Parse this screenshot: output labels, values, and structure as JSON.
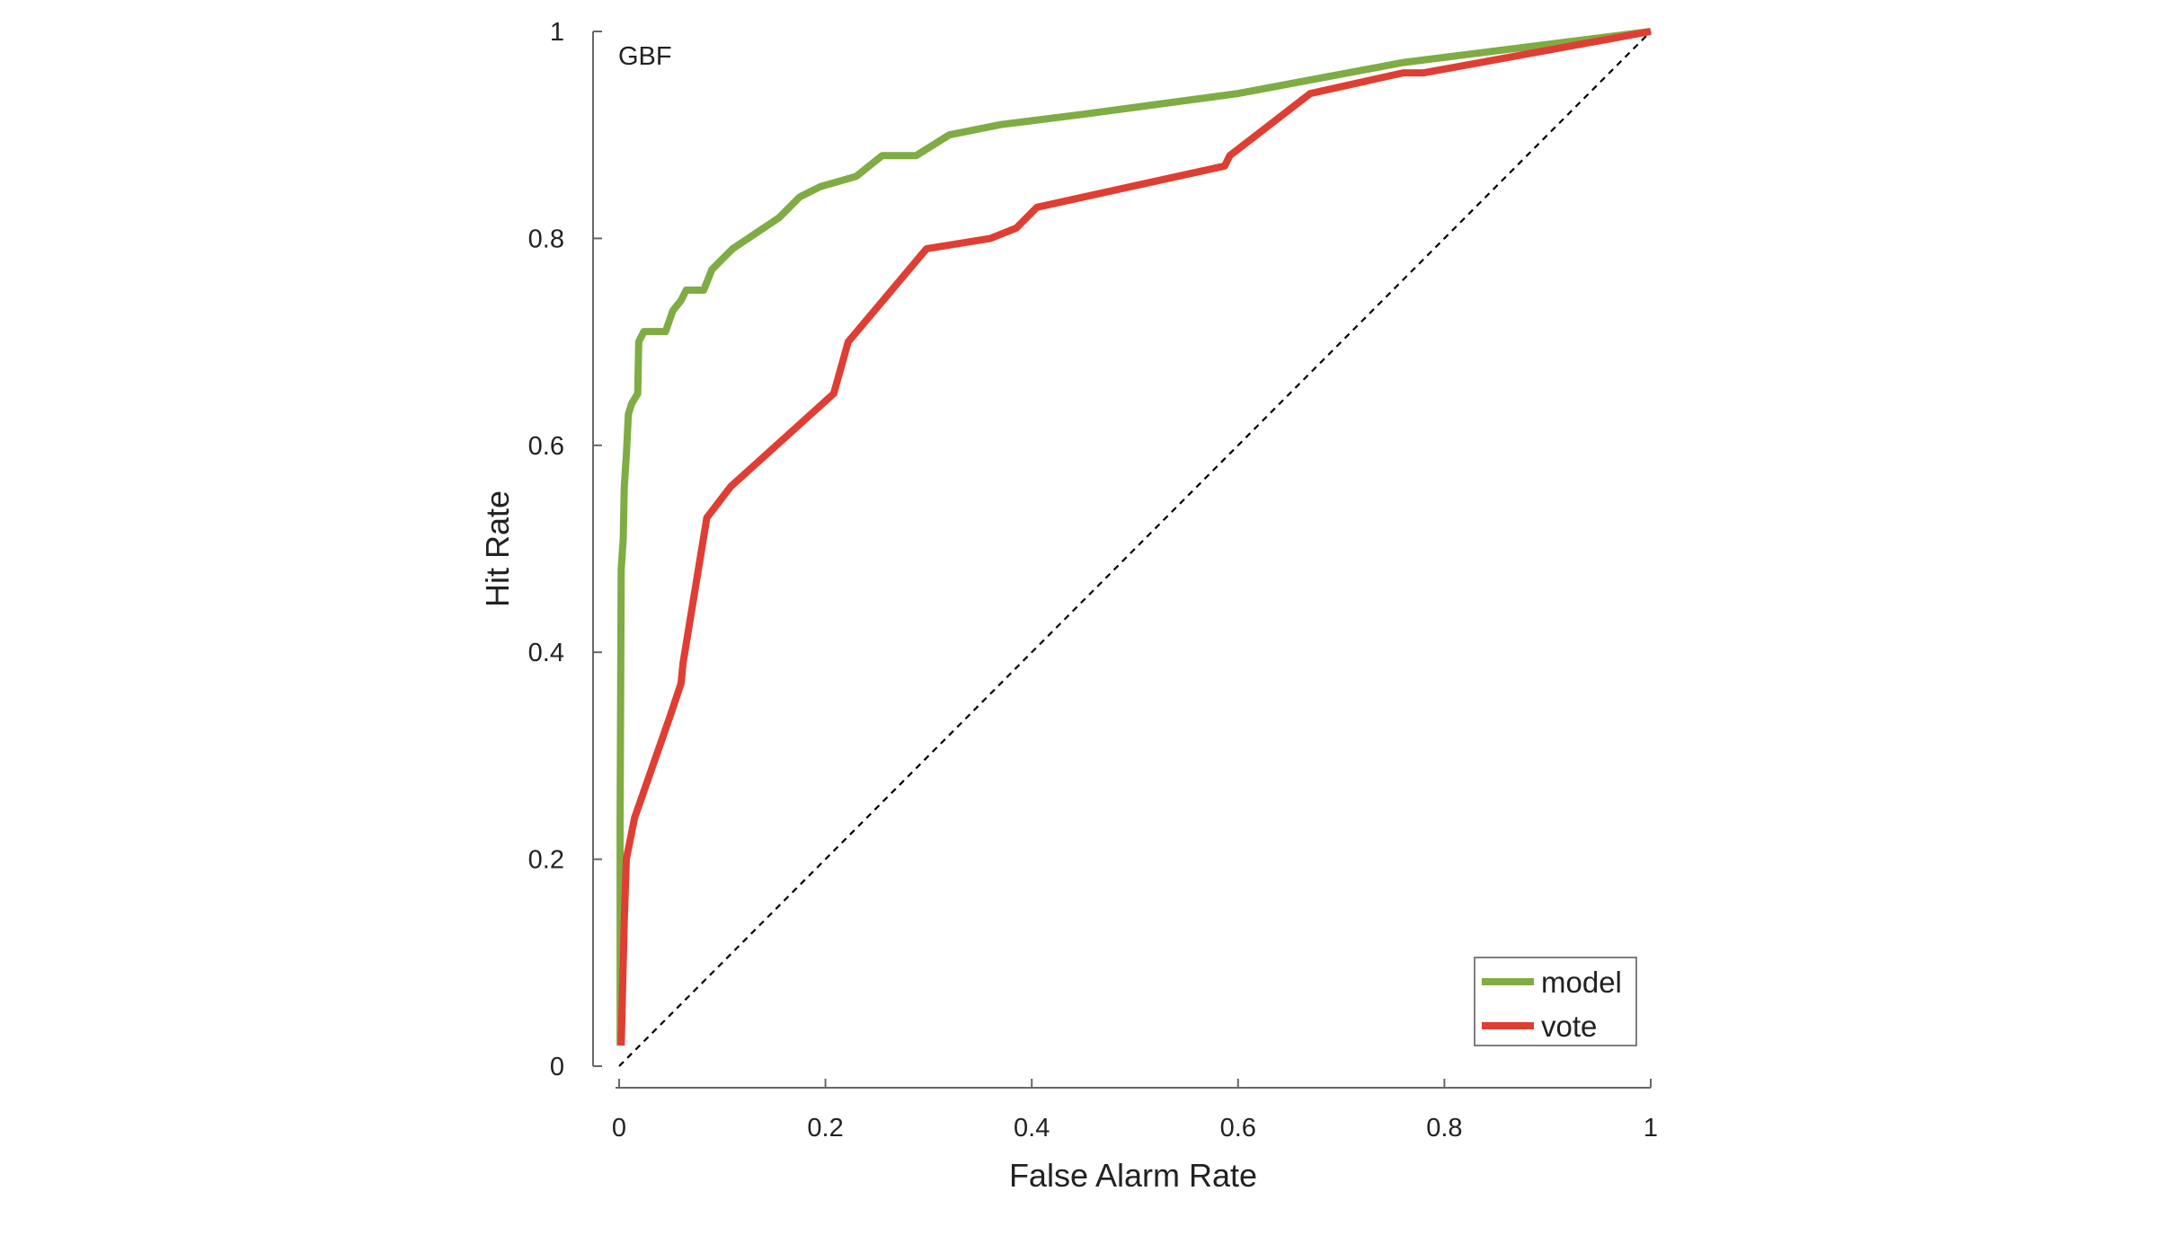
{
  "chart_data": {
    "type": "line",
    "title": "",
    "panel_label": "GBF",
    "xlabel": "False Alarm Rate",
    "ylabel": "Hit Rate",
    "xlim": [
      0,
      1
    ],
    "ylim": [
      0,
      1
    ],
    "xticks": [
      0,
      0.2,
      0.4,
      0.6,
      0.8,
      1
    ],
    "yticks": [
      0,
      0.2,
      0.4,
      0.6,
      0.8,
      1
    ],
    "xtick_labels": [
      "0",
      "0.2",
      "0.4",
      "0.6",
      "0.8",
      "1"
    ],
    "ytick_labels": [
      "0",
      "0.2",
      "0.4",
      "0.6",
      "0.8",
      "1"
    ],
    "grid": false,
    "legend_position": "bottom-right",
    "reference_line": {
      "style": "dashed",
      "color": "#000000",
      "from": [
        0,
        0
      ],
      "to": [
        1,
        1
      ]
    },
    "series": [
      {
        "name": "model",
        "color": "#7fac43",
        "points": [
          [
            0.001,
            0.02
          ],
          [
            0.001,
            0.24
          ],
          [
            0.002,
            0.48
          ],
          [
            0.004,
            0.51
          ],
          [
            0.005,
            0.56
          ],
          [
            0.007,
            0.59
          ],
          [
            0.009,
            0.63
          ],
          [
            0.012,
            0.64
          ],
          [
            0.018,
            0.65
          ],
          [
            0.019,
            0.7
          ],
          [
            0.024,
            0.71
          ],
          [
            0.045,
            0.71
          ],
          [
            0.052,
            0.73
          ],
          [
            0.06,
            0.74
          ],
          [
            0.065,
            0.75
          ],
          [
            0.082,
            0.75
          ],
          [
            0.09,
            0.77
          ],
          [
            0.1,
            0.78
          ],
          [
            0.11,
            0.79
          ],
          [
            0.125,
            0.8
          ],
          [
            0.14,
            0.81
          ],
          [
            0.155,
            0.82
          ],
          [
            0.175,
            0.84
          ],
          [
            0.195,
            0.85
          ],
          [
            0.23,
            0.86
          ],
          [
            0.255,
            0.88
          ],
          [
            0.288,
            0.88
          ],
          [
            0.32,
            0.9
          ],
          [
            0.37,
            0.91
          ],
          [
            0.45,
            0.92
          ],
          [
            0.6,
            0.94
          ],
          [
            0.76,
            0.97
          ],
          [
            1.0,
            1.0
          ]
        ]
      },
      {
        "name": "vote",
        "color": "#e03e33",
        "points": [
          [
            0.002,
            0.02
          ],
          [
            0.005,
            0.14
          ],
          [
            0.007,
            0.2
          ],
          [
            0.015,
            0.24
          ],
          [
            0.05,
            0.34
          ],
          [
            0.06,
            0.37
          ],
          [
            0.062,
            0.39
          ],
          [
            0.085,
            0.53
          ],
          [
            0.108,
            0.56
          ],
          [
            0.208,
            0.65
          ],
          [
            0.222,
            0.7
          ],
          [
            0.298,
            0.79
          ],
          [
            0.36,
            0.8
          ],
          [
            0.385,
            0.81
          ],
          [
            0.405,
            0.83
          ],
          [
            0.587,
            0.87
          ],
          [
            0.592,
            0.88
          ],
          [
            0.67,
            0.94
          ],
          [
            0.76,
            0.96
          ],
          [
            0.78,
            0.96
          ],
          [
            1.0,
            1.0
          ]
        ]
      }
    ]
  }
}
